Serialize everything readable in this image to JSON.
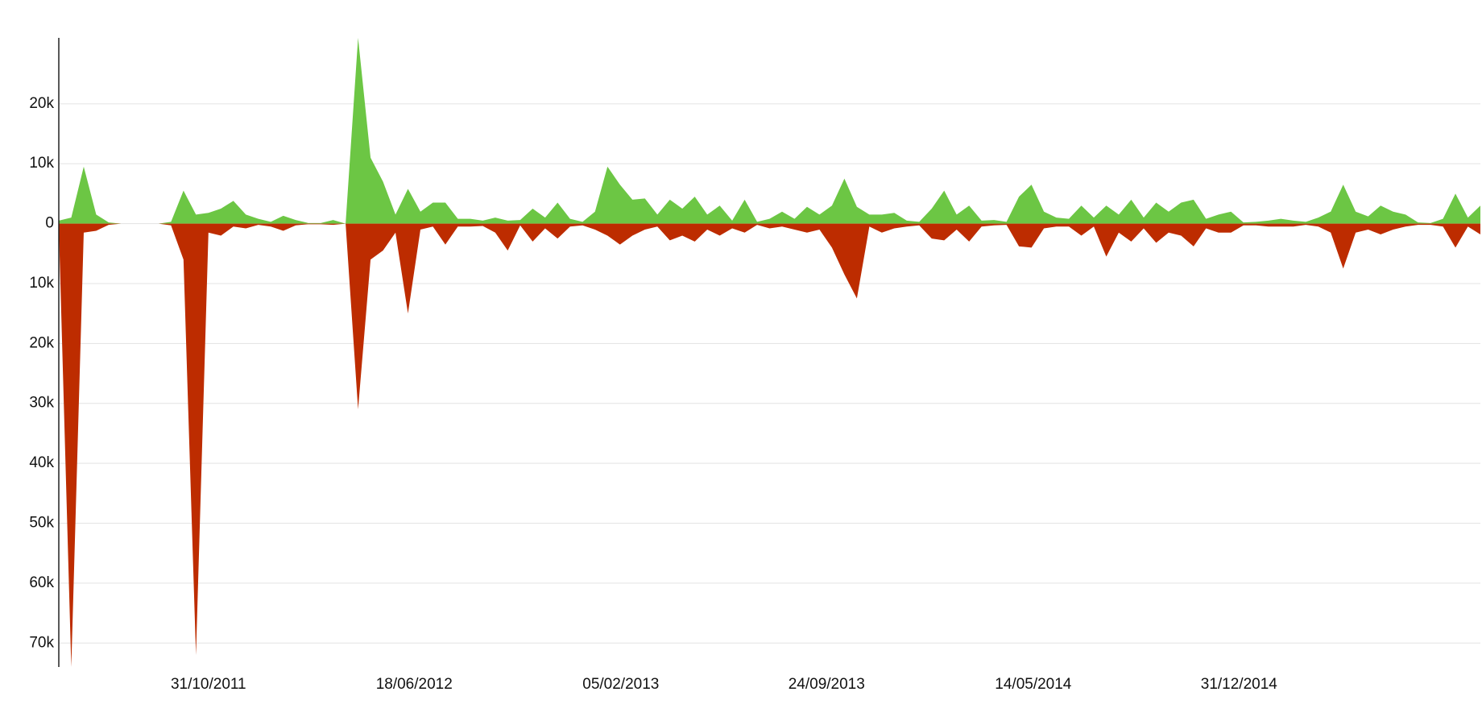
{
  "chart_data": {
    "type": "area",
    "x": [
      "16/05/2011",
      "30/05/2011",
      "13/06/2011",
      "27/06/2011",
      "11/07/2011",
      "25/07/2011",
      "08/08/2011",
      "22/08/2011",
      "05/09/2011",
      "19/09/2011",
      "03/10/2011",
      "17/10/2011",
      "31/10/2011",
      "14/11/2011",
      "28/11/2011",
      "12/12/2011",
      "26/12/2011",
      "09/01/2012",
      "23/01/2012",
      "06/02/2012",
      "20/02/2012",
      "05/03/2012",
      "19/03/2012",
      "02/04/2012",
      "16/04/2012",
      "30/04/2012",
      "14/05/2012",
      "28/05/2012",
      "11/06/2012",
      "25/06/2012",
      "09/07/2012",
      "23/07/2012",
      "06/08/2012",
      "20/08/2012",
      "03/09/2012",
      "17/09/2012",
      "01/10/2012",
      "15/10/2012",
      "29/10/2012",
      "12/11/2012",
      "26/11/2012",
      "10/12/2012",
      "24/12/2012",
      "07/01/2013",
      "21/01/2013",
      "04/02/2013",
      "18/02/2013",
      "04/03/2013",
      "18/03/2013",
      "01/04/2013",
      "15/04/2013",
      "29/04/2013",
      "13/05/2013",
      "27/05/2013",
      "10/06/2013",
      "24/06/2013",
      "08/07/2013",
      "22/07/2013",
      "05/08/2013",
      "19/08/2013",
      "02/09/2013",
      "16/09/2013",
      "30/09/2013",
      "14/10/2013",
      "28/10/2013",
      "11/11/2013",
      "25/11/2013",
      "09/12/2013",
      "23/12/2013",
      "06/01/2014",
      "20/01/2014",
      "03/02/2014",
      "17/02/2014",
      "03/03/2014",
      "17/03/2014",
      "31/03/2014",
      "14/04/2014",
      "28/04/2014",
      "12/05/2014",
      "26/05/2014",
      "09/06/2014",
      "23/06/2014",
      "07/07/2014",
      "21/07/2014",
      "04/08/2014",
      "18/08/2014",
      "01/09/2014",
      "15/09/2014",
      "29/09/2014",
      "13/10/2014",
      "27/10/2014",
      "10/11/2014",
      "24/11/2014",
      "08/12/2014",
      "22/12/2014",
      "05/01/2015",
      "19/01/2015",
      "02/02/2015",
      "16/02/2015",
      "02/03/2015",
      "16/03/2015",
      "30/03/2015",
      "13/04/2015",
      "27/04/2015",
      "11/05/2015",
      "25/05/2015",
      "08/06/2015",
      "22/06/2015",
      "06/07/2015",
      "20/07/2015",
      "03/08/2015",
      "17/08/2015",
      "31/08/2015",
      "14/09/2015",
      "28/09/2015"
    ],
    "series": [
      {
        "color": "#6cc644",
        "values": [
          500,
          1000,
          9500,
          1500,
          200,
          0,
          0,
          0,
          0,
          300,
          5500,
          1500,
          1800,
          2500,
          3800,
          1500,
          800,
          300,
          1300,
          600,
          100,
          100,
          600,
          0,
          31000,
          11000,
          7000,
          1500,
          5800,
          2000,
          3500,
          3500,
          800,
          800,
          500,
          1000,
          500,
          600,
          2500,
          1000,
          3500,
          800,
          300,
          2000,
          9500,
          6500,
          4000,
          4200,
          1500,
          4000,
          2500,
          4500,
          1500,
          3000,
          500,
          4000,
          300,
          800,
          2000,
          800,
          2800,
          1500,
          3000,
          7500,
          2800,
          1500,
          1500,
          1800,
          500,
          300,
          2500,
          5500,
          1500,
          3000,
          500,
          600,
          300,
          4500,
          6500,
          2000,
          1000,
          800,
          3000,
          1000,
          3000,
          1500,
          4000,
          1000,
          3500,
          2000,
          3500,
          4000,
          800,
          1500,
          2000,
          200,
          300,
          500,
          800,
          500,
          300,
          1000,
          2000,
          6500,
          2000,
          1200,
          3000,
          2000,
          1500,
          200,
          100,
          800,
          5000,
          1000,
          3000
        ]
      },
      {
        "color": "#bd2c00",
        "values": [
          -500,
          -74000,
          -1500,
          -1200,
          -200,
          0,
          0,
          0,
          0,
          -300,
          -6000,
          -72000,
          -1500,
          -2000,
          -500,
          -800,
          -200,
          -500,
          -1200,
          -300,
          -100,
          -100,
          -200,
          0,
          -31000,
          -6000,
          -4500,
          -1500,
          -15000,
          -1000,
          -500,
          -3500,
          -500,
          -500,
          -400,
          -1500,
          -4500,
          -300,
          -3000,
          -800,
          -2500,
          -500,
          -300,
          -1000,
          -2000,
          -3500,
          -2000,
          -1000,
          -500,
          -2800,
          -2000,
          -3000,
          -1000,
          -2000,
          -800,
          -1500,
          -200,
          -800,
          -500,
          -1000,
          -1500,
          -1000,
          -4000,
          -8500,
          -12500,
          -500,
          -1500,
          -800,
          -500,
          -300,
          -2500,
          -2800,
          -1000,
          -3000,
          -500,
          -300,
          -200,
          -3800,
          -4000,
          -800,
          -500,
          -500,
          -2000,
          -500,
          -5500,
          -1500,
          -3000,
          -800,
          -3200,
          -1500,
          -2000,
          -3800,
          -800,
          -1500,
          -1500,
          -300,
          -300,
          -500,
          -500,
          -500,
          -200,
          -500,
          -1500,
          -7500,
          -1500,
          -1000,
          -1800,
          -1000,
          -500,
          -200,
          -200,
          -500,
          -4000,
          -500,
          -1800
        ]
      }
    ],
    "xlim": [
      "16/05/2011",
      "28/09/2015"
    ],
    "xticks": [
      "31/10/2011",
      "18/06/2012",
      "05/02/2013",
      "24/09/2013",
      "14/05/2014",
      "31/12/2014"
    ],
    "ylim": [
      -74000,
      31000
    ],
    "yticks": [
      {
        "value": 20000,
        "label": "20k"
      },
      {
        "value": 10000,
        "label": "10k"
      },
      0,
      {
        "value": -10000,
        "label": "10k"
      },
      {
        "value": -20000,
        "label": "20k"
      },
      {
        "value": -30000,
        "label": "30k"
      },
      {
        "value": -40000,
        "label": "40k"
      },
      {
        "value": -50000,
        "label": "50k"
      },
      {
        "value": -60000,
        "label": "60k"
      },
      {
        "value": -70000,
        "label": "70k"
      }
    ],
    "grid": true
  }
}
